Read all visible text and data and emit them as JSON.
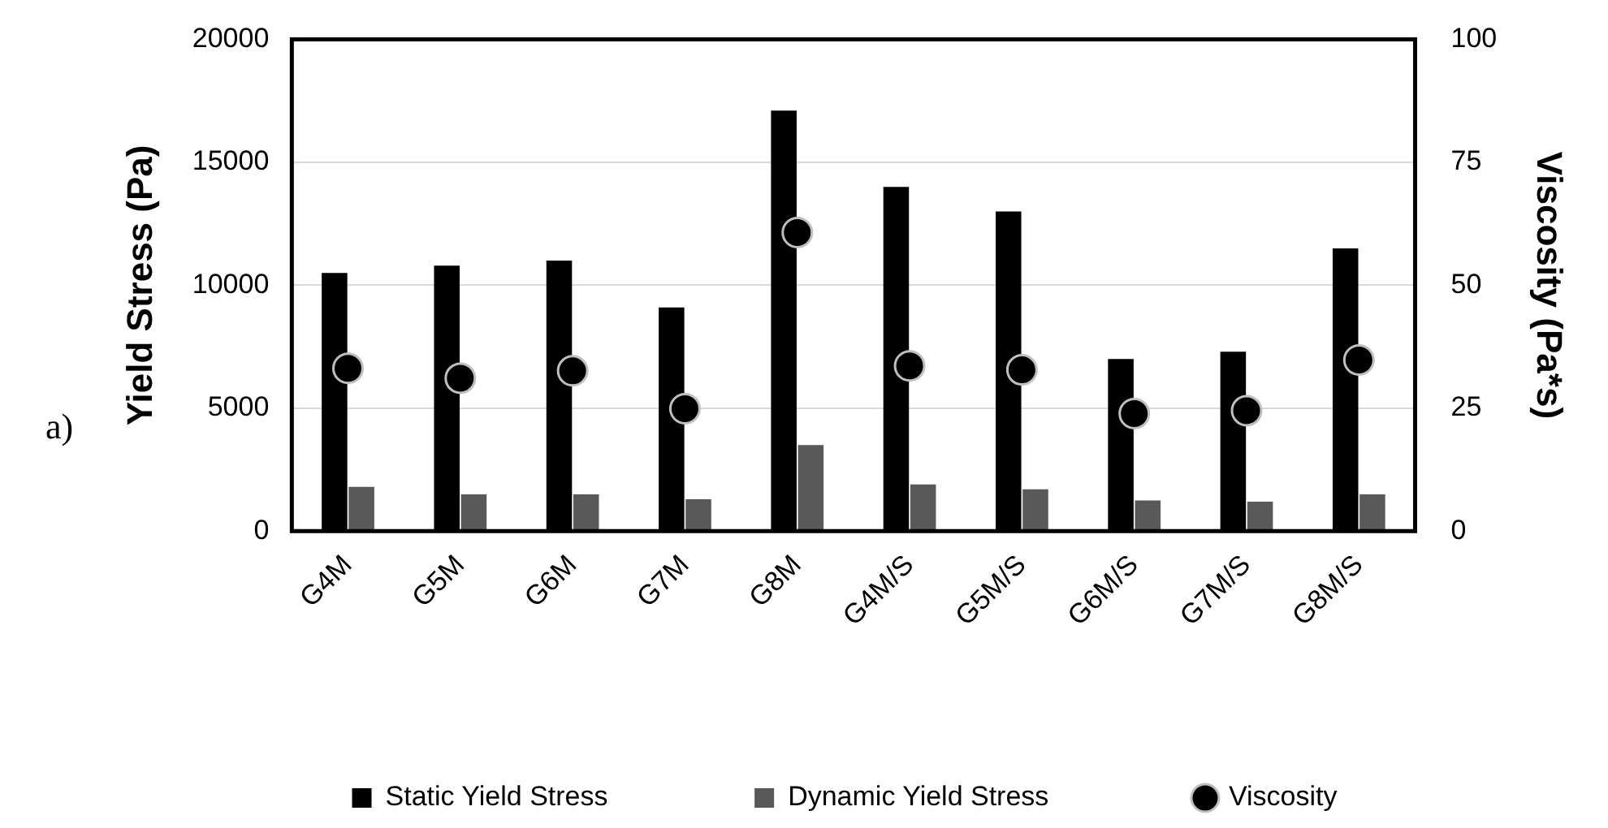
{
  "chart_data": {
    "type": "bar",
    "categories": [
      "G4M",
      "G5M",
      "G6M",
      "G7M",
      "G8M",
      "G4M/S",
      "G5M/S",
      "G6M/S",
      "G7M/S",
      "G8M/S"
    ],
    "series": [
      {
        "name": "Static Yield Stress",
        "color": "#000000",
        "values": [
          10500,
          10800,
          11000,
          9100,
          17100,
          14000,
          13000,
          7000,
          7300,
          11500
        ]
      },
      {
        "name": "Dynamic Yield Stress",
        "color": "#595959",
        "values": [
          1800,
          1500,
          1500,
          1300,
          3500,
          1900,
          1700,
          1250,
          1200,
          1500
        ]
      },
      {
        "name": "Viscosity",
        "type": "scatter",
        "axis": "y2",
        "color": "#000000",
        "values": [
          33.1,
          31.1,
          32.6,
          24.9,
          60.7,
          33.6,
          32.8,
          23.9,
          24.5,
          34.8
        ]
      }
    ],
    "ylabel": "Yield Stress (Pa)",
    "y2label": "Viscosity (Pa*s)",
    "ylim": [
      0,
      20000
    ],
    "yticks": [
      0,
      5000,
      10000,
      15000,
      20000
    ],
    "y2lim": [
      0,
      100
    ],
    "y2ticks": [
      0,
      25,
      50,
      75,
      100
    ],
    "grid": "y",
    "legend": "bottom",
    "marker": "circle",
    "annotations": [
      "a)"
    ]
  }
}
